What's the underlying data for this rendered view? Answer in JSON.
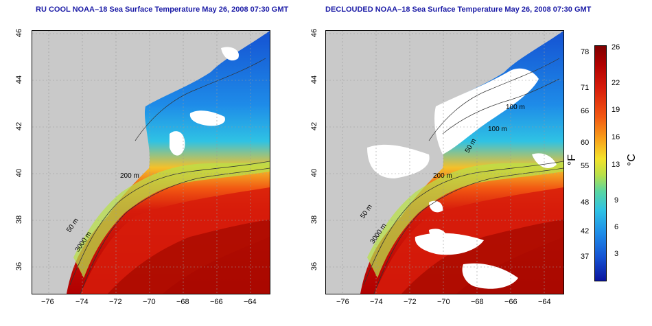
{
  "left_panel": {
    "title": "RU COOL NOAA–18 Sea Surface Temperature May 26, 2008 07:30 GMT",
    "contour_labels": [
      "200 m",
      "50 m",
      "3000 m"
    ]
  },
  "right_panel": {
    "title": "DECLOUDED NOAA–18 Sea Surface Temperature May 26, 2008 07:30 GMT",
    "contour_labels": [
      "200 m",
      "50 m",
      "3000 m",
      "100 m",
      "100 m",
      "50 m"
    ]
  },
  "axes": {
    "x_ticks": [
      "−76",
      "−74",
      "−72",
      "−70",
      "−68",
      "−66",
      "−64"
    ],
    "y_ticks": [
      "46",
      "44",
      "42",
      "40",
      "38",
      "36"
    ]
  },
  "colorbar": {
    "fahrenheit_unit": "°F",
    "celsius_unit": "°C",
    "fahrenheit_ticks": [
      "78",
      "71",
      "66",
      "60",
      "55",
      "48",
      "42",
      "37"
    ],
    "celsius_ticks": [
      "26",
      "22",
      "19",
      "16",
      "13",
      "9",
      "6",
      "3"
    ]
  },
  "colors": {
    "land": "#c8c8c8",
    "cloud": "#ffffff",
    "cold": "#1552d2",
    "cool": "#2fc2e4",
    "mild": "#b8e04a",
    "warm": "#f8a31a",
    "hot": "#d71c0b",
    "hottest": "#9a0000"
  }
}
